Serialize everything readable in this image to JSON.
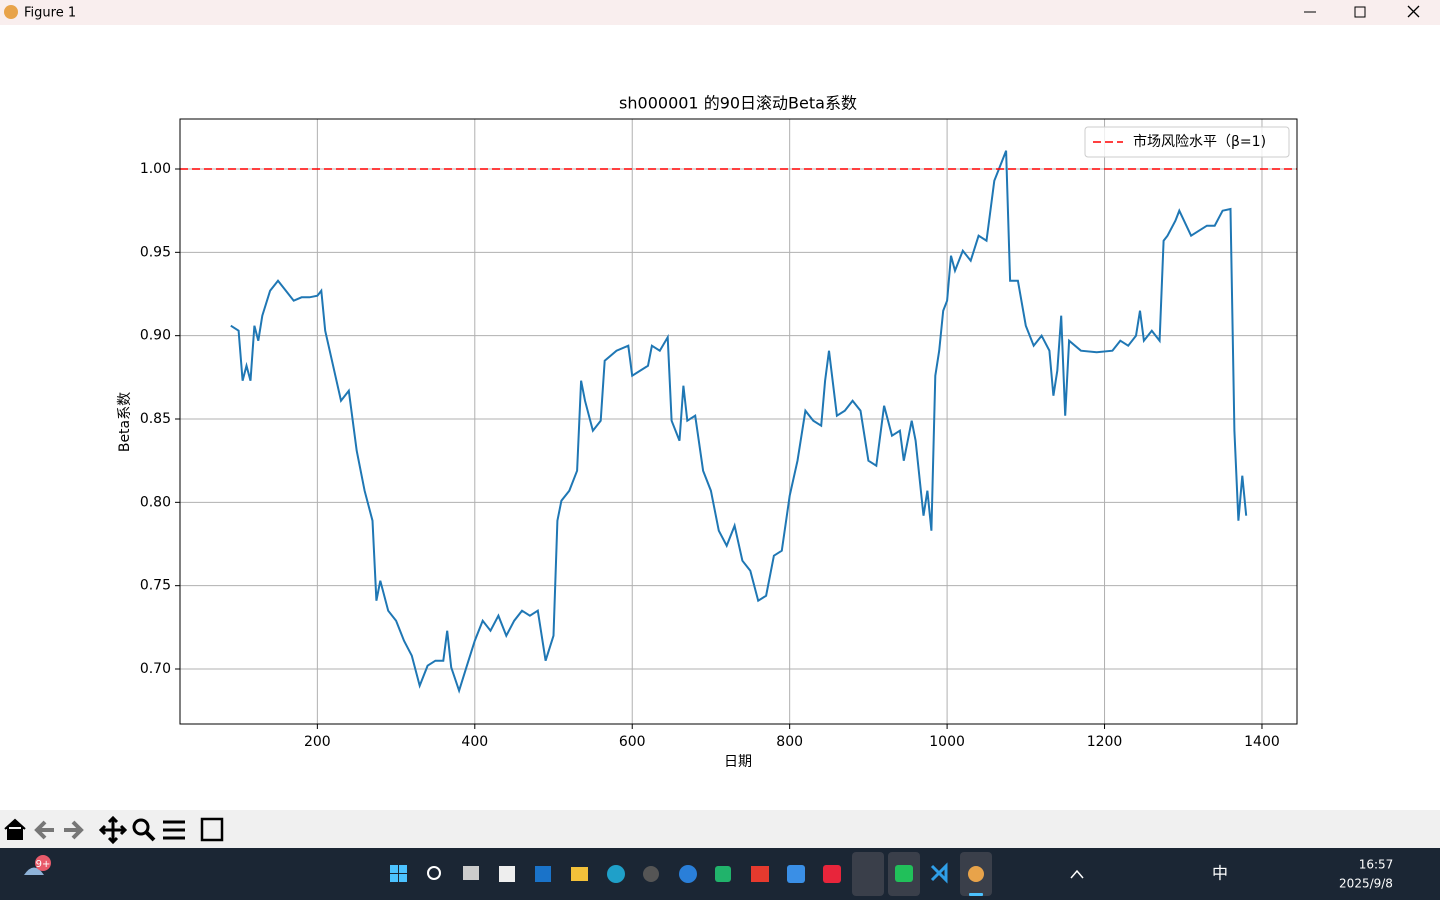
{
  "window": {
    "title": "Figure 1"
  },
  "taskbar": {
    "badge": "9+",
    "ime": "中",
    "time": "16:57",
    "date": "2025/9/8"
  },
  "chart_data": {
    "type": "line",
    "title": "sh000001 的90日滚动Beta系数",
    "xlabel": "日期",
    "ylabel": "Beta系数",
    "x": [
      90,
      100,
      105,
      110,
      115,
      120,
      125,
      130,
      140,
      150,
      160,
      170,
      180,
      190,
      200,
      205,
      210,
      220,
      230,
      240,
      250,
      260,
      270,
      275,
      280,
      290,
      300,
      310,
      320,
      330,
      340,
      350,
      360,
      365,
      370,
      380,
      390,
      400,
      410,
      420,
      430,
      440,
      450,
      460,
      470,
      480,
      490,
      500,
      505,
      510,
      520,
      530,
      535,
      540,
      550,
      560,
      565,
      580,
      595,
      600,
      620,
      625,
      635,
      645,
      650,
      660,
      665,
      670,
      680,
      690,
      700,
      710,
      720,
      730,
      740,
      750,
      760,
      770,
      780,
      790,
      800,
      810,
      820,
      830,
      840,
      845,
      850,
      860,
      870,
      880,
      890,
      900,
      910,
      920,
      930,
      940,
      945,
      955,
      960,
      970,
      975,
      980,
      985,
      990,
      995,
      1000,
      1005,
      1010,
      1020,
      1030,
      1040,
      1050,
      1060,
      1070,
      1075,
      1080,
      1090,
      1100,
      1110,
      1120,
      1130,
      1135,
      1140,
      1145,
      1150,
      1155,
      1170,
      1190,
      1210,
      1220,
      1230,
      1240,
      1245,
      1250,
      1260,
      1270,
      1275,
      1280,
      1290,
      1295,
      1310,
      1320,
      1330,
      1340,
      1350,
      1360,
      1365,
      1370,
      1375,
      1380
    ],
    "series": [
      {
        "name": "Beta",
        "color": "#1f77b4",
        "values": [
          0.906,
          0.903,
          0.873,
          0.882,
          0.873,
          0.906,
          0.897,
          0.912,
          0.927,
          0.933,
          0.927,
          0.921,
          0.923,
          0.923,
          0.924,
          0.927,
          0.903,
          0.882,
          0.861,
          0.867,
          0.831,
          0.807,
          0.789,
          0.741,
          0.753,
          0.735,
          0.729,
          0.717,
          0.708,
          0.69,
          0.702,
          0.705,
          0.705,
          0.723,
          0.701,
          0.687,
          0.702,
          0.717,
          0.729,
          0.723,
          0.732,
          0.72,
          0.729,
          0.735,
          0.732,
          0.735,
          0.705,
          0.72,
          0.789,
          0.801,
          0.807,
          0.819,
          0.873,
          0.861,
          0.843,
          0.849,
          0.885,
          0.891,
          0.894,
          0.876,
          0.882,
          0.894,
          0.891,
          0.899,
          0.849,
          0.837,
          0.87,
          0.849,
          0.852,
          0.819,
          0.807,
          0.783,
          0.774,
          0.786,
          0.765,
          0.759,
          0.741,
          0.744,
          0.768,
          0.771,
          0.804,
          0.825,
          0.855,
          0.849,
          0.846,
          0.873,
          0.891,
          0.852,
          0.855,
          0.861,
          0.855,
          0.825,
          0.822,
          0.858,
          0.84,
          0.843,
          0.825,
          0.849,
          0.837,
          0.792,
          0.807,
          0.783,
          0.876,
          0.891,
          0.915,
          0.921,
          0.948,
          0.939,
          0.951,
          0.945,
          0.96,
          0.957,
          0.993,
          1.005,
          1.011,
          0.933,
          0.933,
          0.906,
          0.894,
          0.9,
          0.891,
          0.864,
          0.879,
          0.912,
          0.852,
          0.897,
          0.891,
          0.89,
          0.891,
          0.897,
          0.894,
          0.9,
          0.915,
          0.897,
          0.903,
          0.897,
          0.957,
          0.96,
          0.969,
          0.975,
          0.96,
          0.963,
          0.966,
          0.966,
          0.975,
          0.976,
          0.843,
          0.789,
          0.816,
          0.792
        ]
      }
    ],
    "hlines": [
      {
        "name": "市场风险水平（β=1)",
        "value": 1,
        "color": "#ff0000",
        "style": "dashed"
      }
    ],
    "xlim": [
      25.5,
      1444.5
    ],
    "ylim": [
      0.667,
      1.03
    ],
    "xticks": [
      200,
      400,
      600,
      800,
      1000,
      1200,
      1400
    ],
    "yticks": [
      {
        "value": 0.7,
        "label": "0.70"
      },
      {
        "value": 0.75,
        "label": "0.75"
      },
      {
        "value": 0.8,
        "label": "0.80"
      },
      {
        "value": 0.85,
        "label": "0.85"
      },
      {
        "value": 0.9,
        "label": "0.90"
      },
      {
        "value": 0.95,
        "label": "0.95"
      },
      {
        "value": 1,
        "label": "1.00"
      }
    ],
    "grid": true,
    "legend": "upper right"
  }
}
